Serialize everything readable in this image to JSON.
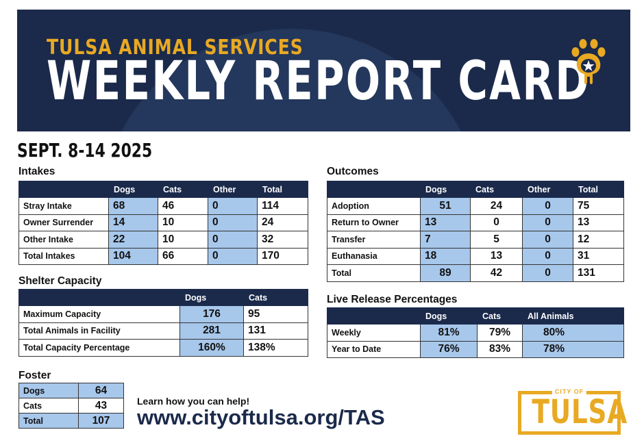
{
  "header": {
    "subtitle": "TULSA ANIMAL SERVICES",
    "title": "WEEKLY REPORT CARD",
    "icon": "paw-star-icon"
  },
  "date_range": "SEPT. 8-14 2025",
  "intakes": {
    "title": "Intakes",
    "columns": [
      "",
      "Dogs",
      "Cats",
      "Other",
      "Total"
    ],
    "rows": [
      {
        "label": "Stray Intake",
        "dogs": "68",
        "cats": "46",
        "other": "0",
        "total": "114"
      },
      {
        "label": "Owner Surrender",
        "dogs": "14",
        "cats": "10",
        "other": "0",
        "total": "24"
      },
      {
        "label": "Other Intake",
        "dogs": "22",
        "cats": "10",
        "other": "0",
        "total": "32"
      },
      {
        "label": "Total Intakes",
        "dogs": "104",
        "cats": "66",
        "other": "0",
        "total": "170"
      }
    ]
  },
  "outcomes": {
    "title": "Outcomes",
    "columns": [
      "",
      "Dogs",
      "Cats",
      "Other",
      "Total"
    ],
    "rows": [
      {
        "label": "Adoption",
        "dogs": "51",
        "cats": "24",
        "other": "0",
        "total": "75"
      },
      {
        "label": "Return to Owner",
        "dogs": "13",
        "cats": "0",
        "other": "0",
        "total": "13"
      },
      {
        "label": "Transfer",
        "dogs": "7",
        "cats": "5",
        "other": "0",
        "total": "12"
      },
      {
        "label": "Euthanasia",
        "dogs": "18",
        "cats": "13",
        "other": "0",
        "total": "31"
      },
      {
        "label": "Total",
        "dogs": "89",
        "cats": "42",
        "other": "0",
        "total": "131"
      }
    ]
  },
  "shelter_capacity": {
    "title": "Shelter Capacity",
    "columns": [
      "",
      "Dogs",
      "Cats"
    ],
    "rows": [
      {
        "label": "Maximum Capacity",
        "dogs": "176",
        "cats": "95"
      },
      {
        "label": "Total Animals in Facility",
        "dogs": "281",
        "cats": "131"
      },
      {
        "label": "Total Capacity Percentage",
        "dogs": "160%",
        "cats": "138%"
      }
    ]
  },
  "live_release": {
    "title": "Live Release Percentages",
    "columns": [
      "",
      "Dogs",
      "Cats",
      "All Animals"
    ],
    "rows": [
      {
        "label": "Weekly",
        "dogs": "81%",
        "cats": "79%",
        "all": "80%"
      },
      {
        "label": "Year to Date",
        "dogs": "76%",
        "cats": "83%",
        "all": "78%"
      }
    ]
  },
  "foster": {
    "title": "Foster",
    "rows": [
      {
        "label": "Dogs",
        "value": "64"
      },
      {
        "label": "Cats",
        "value": "43"
      },
      {
        "label": "Total",
        "value": "107"
      }
    ]
  },
  "cta": {
    "learn": "Learn how you can help!",
    "url": "www.cityoftulsa.org/TAS"
  },
  "logo": {
    "city_of": "CITY OF",
    "name": "TULSA"
  },
  "colors": {
    "navy": "#1b2a4b",
    "gold": "#e8a923",
    "highlight_blue": "#a7c7eb"
  }
}
